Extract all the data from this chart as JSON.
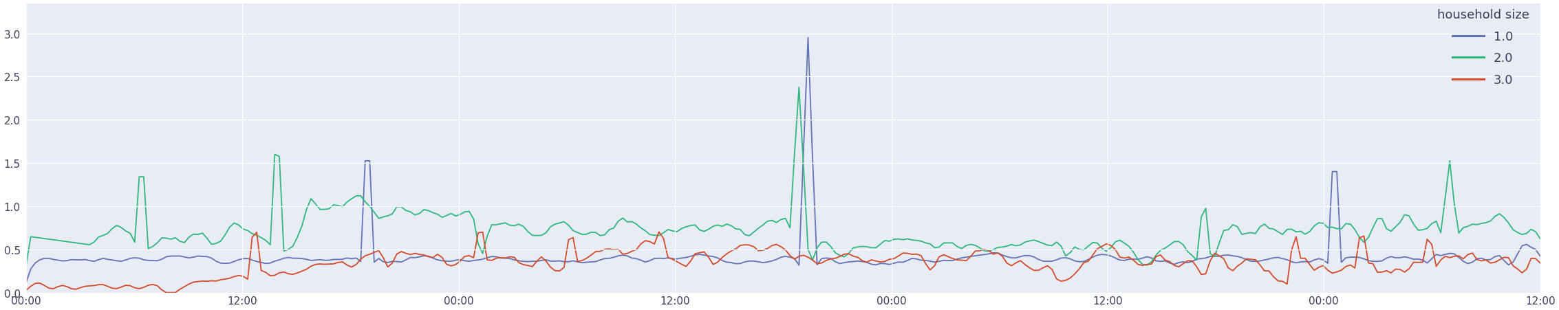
{
  "legend_title": "household size",
  "series_labels": [
    "1.0",
    "2.0",
    "3.0"
  ],
  "series_colors": [
    "#6272b5",
    "#2db87d",
    "#d44a2a"
  ],
  "background_color": "#e8ecf4",
  "fig_bg_color": "#ffffff",
  "ylim": [
    0,
    3.35
  ],
  "yticks": [
    0,
    0.5,
    1.0,
    1.5,
    2.0,
    2.5,
    3.0
  ],
  "xtick_labels": [
    "00:00",
    "12:00",
    "00:00",
    "12:00",
    "00:00",
    "12:00",
    "00:00",
    "12:00"
  ],
  "n_points": 336,
  "grid_color": "#ffffff",
  "linewidth": 1.3
}
